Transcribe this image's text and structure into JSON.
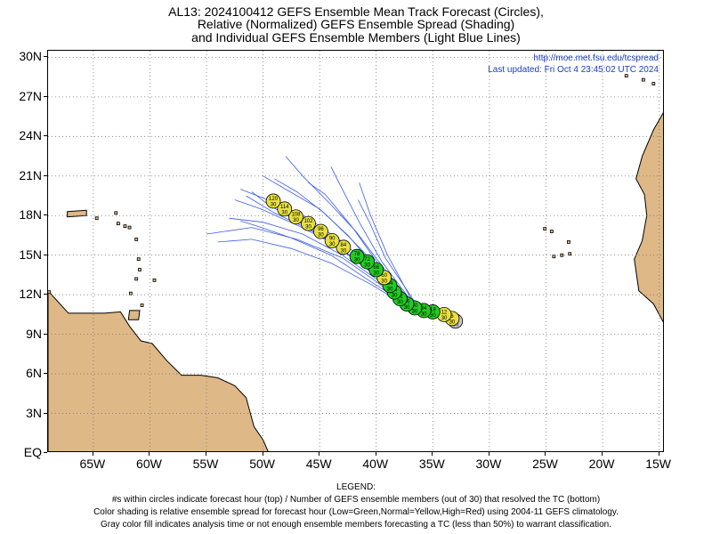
{
  "title": {
    "line1": "AL13: 2024100412 GEFS Ensemble Mean Track Forecast (Circles),",
    "line2": "Relative (Normalized) GEFS Ensemble Spread (Shading)",
    "line3": "and Individual GEFS Ensemble Members (Light Blue Lines)"
  },
  "source": {
    "url": "http://moe.met.fsu.edu/tcspread",
    "updated": "Last updated: Fri Oct 4 23:45:02 UTC 2024"
  },
  "axes": {
    "lat_labels": [
      "30N",
      "27N",
      "24N",
      "21N",
      "18N",
      "15N",
      "12N",
      "9N",
      "6N",
      "3N",
      "EQ"
    ],
    "lat_values": [
      30,
      27,
      24,
      21,
      18,
      15,
      12,
      9,
      6,
      3,
      0
    ],
    "lon_labels": [
      "65W",
      "60W",
      "55W",
      "50W",
      "45W",
      "40W",
      "35W",
      "30W",
      "25W",
      "20W",
      "15W"
    ],
    "lon_values": [
      -65,
      -60,
      -55,
      -50,
      -45,
      -40,
      -35,
      -30,
      -25,
      -20,
      -15
    ],
    "lon_range": [
      -69,
      -14.5
    ],
    "lat_range": [
      0,
      30.5
    ],
    "grid": "dotted"
  },
  "colors": {
    "land": "#DEB887",
    "member_lines": "#3a5ce8",
    "low_spread": "#22cc22",
    "normal_spread": "#e8e040",
    "analysis": "#c8c8c8",
    "url_text": "#1a3cc8"
  },
  "track": [
    {
      "hour": "0",
      "members": "30",
      "lon": -33.0,
      "lat": 10.0,
      "spread": "gray"
    },
    {
      "hour": "6",
      "members": "30",
      "lon": -33.3,
      "lat": 10.2,
      "spread": "normal"
    },
    {
      "hour": "12",
      "members": "30",
      "lon": -34.0,
      "lat": 10.5,
      "spread": "normal"
    },
    {
      "hour": "18",
      "members": "30",
      "lon": -35.0,
      "lat": 10.7,
      "spread": "low"
    },
    {
      "hour": "24",
      "members": "30",
      "lon": -35.8,
      "lat": 10.8,
      "spread": "low"
    },
    {
      "hour": "30",
      "members": "30",
      "lon": -36.6,
      "lat": 11.0,
      "spread": "low"
    },
    {
      "hour": "36",
      "members": "30",
      "lon": -37.3,
      "lat": 11.3,
      "spread": "low"
    },
    {
      "hour": "42",
      "members": "30",
      "lon": -37.9,
      "lat": 11.7,
      "spread": "low"
    },
    {
      "hour": "48",
      "members": "30",
      "lon": -38.4,
      "lat": 12.2,
      "spread": "low"
    },
    {
      "hour": "54",
      "members": "30",
      "lon": -38.8,
      "lat": 12.7,
      "spread": "low"
    },
    {
      "hour": "60",
      "members": "30",
      "lon": -39.3,
      "lat": 13.3,
      "spread": "normal"
    },
    {
      "hour": "66",
      "members": "30",
      "lon": -40.0,
      "lat": 13.9,
      "spread": "low"
    },
    {
      "hour": "72",
      "members": "30",
      "lon": -40.8,
      "lat": 14.5,
      "spread": "low"
    },
    {
      "hour": "78",
      "members": "30",
      "lon": -41.7,
      "lat": 14.9,
      "spread": "low"
    },
    {
      "hour": "84",
      "members": "30",
      "lon": -42.9,
      "lat": 15.6,
      "spread": "normal"
    },
    {
      "hour": "90",
      "members": "30",
      "lon": -43.9,
      "lat": 16.1,
      "spread": "normal"
    },
    {
      "hour": "96",
      "members": "30",
      "lon": -44.9,
      "lat": 16.8,
      "spread": "normal"
    },
    {
      "hour": "102",
      "members": "30",
      "lon": -46.0,
      "lat": 17.4,
      "spread": "normal"
    },
    {
      "hour": "108",
      "members": "30",
      "lon": -47.1,
      "lat": 17.9,
      "spread": "normal"
    },
    {
      "hour": "114",
      "members": "30",
      "lon": -48.1,
      "lat": 18.5,
      "spread": "normal"
    },
    {
      "hour": "120",
      "members": "30",
      "lon": -49.1,
      "lat": 19.1,
      "spread": "normal"
    }
  ],
  "members": [
    [
      [
        -33.2,
        10.1
      ],
      [
        -37,
        11.2
      ],
      [
        -40,
        13.8
      ],
      [
        -43,
        16.0
      ],
      [
        -46,
        17.8
      ],
      [
        -49,
        19.0
      ],
      [
        -52,
        20.0
      ]
    ],
    [
      [
        -33.2,
        10.1
      ],
      [
        -37,
        11.2
      ],
      [
        -40,
        13.5
      ],
      [
        -43,
        15.4
      ],
      [
        -46,
        17.0
      ],
      [
        -49,
        18.2
      ],
      [
        -51.5,
        19.5
      ]
    ],
    [
      [
        -33.2,
        10.1
      ],
      [
        -37,
        11.3
      ],
      [
        -40,
        14.0
      ],
      [
        -42.5,
        16.5
      ],
      [
        -45,
        18.5
      ],
      [
        -48,
        20.0
      ],
      [
        -50,
        21.0
      ]
    ],
    [
      [
        -33.2,
        10.1
      ],
      [
        -37,
        11.0
      ],
      [
        -40,
        13.0
      ],
      [
        -43,
        14.8
      ],
      [
        -47,
        16.2
      ],
      [
        -51,
        17.1
      ],
      [
        -55,
        16.6
      ]
    ],
    [
      [
        -33.2,
        10.1
      ],
      [
        -37,
        11.1
      ],
      [
        -40,
        13.2
      ],
      [
        -43,
        15.0
      ],
      [
        -46.5,
        16.6
      ],
      [
        -50,
        17.5
      ],
      [
        -53,
        17.8
      ]
    ],
    [
      [
        -33.2,
        10.1
      ],
      [
        -36.8,
        11.4
      ],
      [
        -39.5,
        14.5
      ],
      [
        -41.5,
        17.5
      ],
      [
        -43,
        20.0
      ],
      [
        -44,
        21.7
      ]
    ],
    [
      [
        -33.2,
        10.1
      ],
      [
        -36.8,
        11.5
      ],
      [
        -39,
        15.0
      ],
      [
        -40.5,
        18.0
      ],
      [
        -41.5,
        20.5
      ]
    ],
    [
      [
        -33.2,
        10.1
      ],
      [
        -36.8,
        11.3
      ],
      [
        -39.5,
        14.2
      ],
      [
        -41.8,
        16.8
      ],
      [
        -44.2,
        19.0
      ],
      [
        -46.5,
        21.0
      ],
      [
        -48,
        22.5
      ]
    ],
    [
      [
        -33.2,
        10.1
      ],
      [
        -37,
        11.2
      ],
      [
        -40.2,
        13.6
      ],
      [
        -43.4,
        15.7
      ],
      [
        -46.8,
        17.2
      ],
      [
        -50.2,
        18.5
      ],
      [
        -52.5,
        19.2
      ]
    ],
    [
      [
        -33.2,
        10.1
      ],
      [
        -37,
        11.0
      ],
      [
        -40.5,
        12.8
      ],
      [
        -44,
        14.4
      ],
      [
        -47.5,
        15.5
      ],
      [
        -51,
        16.2
      ],
      [
        -54,
        16.0
      ]
    ],
    [
      [
        -33.2,
        10.1
      ],
      [
        -36.8,
        11.4
      ],
      [
        -39.8,
        14.3
      ],
      [
        -42,
        17.0
      ],
      [
        -44.5,
        19.6
      ],
      [
        -46,
        20.5
      ]
    ],
    [
      [
        -33.2,
        10.1
      ],
      [
        -37,
        11.2
      ],
      [
        -40,
        13.4
      ],
      [
        -43.2,
        15.5
      ],
      [
        -46.4,
        17.3
      ],
      [
        -49.5,
        18.8
      ],
      [
        -51,
        19.8
      ]
    ],
    [
      [
        -33.2,
        10.1
      ],
      [
        -36.9,
        11.3
      ],
      [
        -39.6,
        13.9
      ],
      [
        -42.2,
        16.2
      ],
      [
        -44.6,
        18.2
      ],
      [
        -47,
        19.8
      ],
      [
        -49,
        20.8
      ]
    ],
    [
      [
        -33.2,
        10.1
      ],
      [
        -37,
        11.1
      ],
      [
        -40.5,
        13.0
      ],
      [
        -44,
        15.0
      ],
      [
        -47.5,
        16.3
      ],
      [
        -50.5,
        17.2
      ],
      [
        -52,
        17.6
      ]
    ],
    [
      [
        -33.2,
        10.1
      ],
      [
        -36.7,
        11.6
      ],
      [
        -39.2,
        14.8
      ],
      [
        -40.6,
        17.5
      ],
      [
        -41.6,
        19.2
      ]
    ]
  ],
  "land": [
    [
      [
        -69,
        0
      ],
      [
        -69,
        12.3
      ],
      [
        -67.2,
        10.6
      ],
      [
        -66,
        10.6
      ],
      [
        -64,
        10.6
      ],
      [
        -62.6,
        10.7
      ],
      [
        -61.8,
        9.6
      ],
      [
        -60.8,
        8.5
      ],
      [
        -59.8,
        8.3
      ],
      [
        -58.5,
        7.0
      ],
      [
        -57.2,
        5.9
      ],
      [
        -55.5,
        5.9
      ],
      [
        -54,
        5.7
      ],
      [
        -52.5,
        5.1
      ],
      [
        -51.5,
        4.2
      ],
      [
        -50.8,
        2.0
      ],
      [
        -50,
        1.0
      ],
      [
        -49.5,
        0
      ],
      [
        -69,
        0
      ]
    ],
    [
      [
        -61.9,
        10.1
      ],
      [
        -61,
        10.1
      ],
      [
        -60.9,
        10.8
      ],
      [
        -61.8,
        10.8
      ]
    ],
    [
      [
        -67.3,
        18.3
      ],
      [
        -65.6,
        18.4
      ],
      [
        -65.6,
        18.0
      ],
      [
        -67.3,
        17.9
      ]
    ],
    [
      [
        -14.5,
        9.7
      ],
      [
        -15.5,
        11.3
      ],
      [
        -16.8,
        12.3
      ],
      [
        -17.2,
        14.7
      ],
      [
        -16.5,
        16.1
      ],
      [
        -16.1,
        18.0
      ],
      [
        -16.3,
        19.6
      ],
      [
        -17.05,
        20.8
      ],
      [
        -16.5,
        22.5
      ],
      [
        -15.5,
        24.5
      ],
      [
        -14.5,
        26.0
      ],
      [
        -14.5,
        9.7
      ]
    ]
  ],
  "dots": [
    [
      -61.2,
      16.2
    ],
    [
      -61.0,
      14.7
    ],
    [
      -60.9,
      13.9
    ],
    [
      -61.2,
      13.2
    ],
    [
      -61.7,
      12.1
    ],
    [
      -59.6,
      13.1
    ],
    [
      -62.8,
      17.4
    ],
    [
      -62.2,
      17.2
    ],
    [
      -61.8,
      17.1
    ],
    [
      -63.0,
      18.2
    ],
    [
      -64.7,
      17.8
    ],
    [
      -60.7,
      11.2
    ],
    [
      -68.9,
      12.2
    ],
    [
      -24.5,
      16.8
    ],
    [
      -23.0,
      16.0
    ],
    [
      -22.9,
      15.1
    ],
    [
      -23.6,
      15.0
    ],
    [
      -24.3,
      14.9
    ],
    [
      -25.1,
      17.0
    ],
    [
      -16.4,
      28.3
    ],
    [
      -15.5,
      28.0
    ],
    [
      -13.8,
      28.6
    ],
    [
      -17.9,
      28.6
    ]
  ],
  "legend": {
    "heading": "LEGEND:",
    "line1": "#s within circles indicate forecast hour (top) / Number of GEFS ensemble members (out of 30) that resolved the TC (bottom)",
    "line2": "Color shading is relative ensemble spread for forecast hour (Low=Green,Normal=Yellow,High=Red) using 2004-11 GEFS climatology.",
    "line3": "Gray color fill indicates analysis time or not enough ensemble members forecasting a TC (less than 50%) to warrant classification."
  }
}
